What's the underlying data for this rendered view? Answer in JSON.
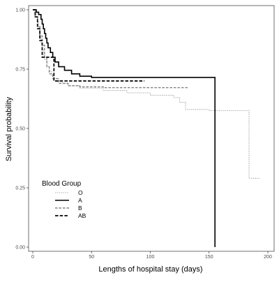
{
  "chart_data": {
    "type": "line",
    "step": true,
    "xlabel": "Lengths of hospital stay (days)",
    "ylabel": "Survival probability",
    "xlim": [
      0,
      200
    ],
    "ylim": [
      0,
      1
    ],
    "x_ticks": [
      "0",
      "50",
      "100",
      "150",
      "200"
    ],
    "y_ticks": [
      "0.00",
      "0.25",
      "0.50",
      "0.75",
      "1.00"
    ],
    "grid": false,
    "legend": {
      "title": "Blood Group",
      "position": "bottom-left"
    },
    "series": [
      {
        "name": "O",
        "color": "#b3b3b3",
        "dash": "dotted",
        "points": [
          [
            0,
            1.0
          ],
          [
            2,
            0.99
          ],
          [
            3,
            0.97
          ],
          [
            4,
            0.95
          ],
          [
            5,
            0.92
          ],
          [
            6,
            0.89
          ],
          [
            7,
            0.86
          ],
          [
            8,
            0.83
          ],
          [
            9,
            0.81
          ],
          [
            10,
            0.79
          ],
          [
            12,
            0.76
          ],
          [
            14,
            0.74
          ],
          [
            16,
            0.72
          ],
          [
            18,
            0.71
          ],
          [
            20,
            0.7
          ],
          [
            25,
            0.69
          ],
          [
            30,
            0.68
          ],
          [
            40,
            0.67
          ],
          [
            60,
            0.66
          ],
          [
            80,
            0.65
          ],
          [
            100,
            0.64
          ],
          [
            120,
            0.63
          ],
          [
            125,
            0.61
          ],
          [
            130,
            0.58
          ],
          [
            150,
            0.575
          ],
          [
            180,
            0.575
          ],
          [
            184,
            0.29
          ],
          [
            193,
            0.29
          ]
        ]
      },
      {
        "name": "A",
        "color": "#000000",
        "dash": "solid",
        "points": [
          [
            0,
            1.0
          ],
          [
            3,
            0.99
          ],
          [
            5,
            0.98
          ],
          [
            7,
            0.96
          ],
          [
            8,
            0.94
          ],
          [
            9,
            0.92
          ],
          [
            10,
            0.9
          ],
          [
            11,
            0.88
          ],
          [
            12,
            0.86
          ],
          [
            13,
            0.84
          ],
          [
            15,
            0.82
          ],
          [
            17,
            0.8
          ],
          [
            19,
            0.78
          ],
          [
            22,
            0.76
          ],
          [
            27,
            0.745
          ],
          [
            33,
            0.73
          ],
          [
            40,
            0.72
          ],
          [
            50,
            0.715
          ],
          [
            155,
            0.715
          ],
          [
            155,
            0.0
          ]
        ]
      },
      {
        "name": "B",
        "color": "#808080",
        "dash": "dashed",
        "points": [
          [
            0,
            1.0
          ],
          [
            2,
            0.97
          ],
          [
            4,
            0.93
          ],
          [
            6,
            0.89
          ],
          [
            8,
            0.85
          ],
          [
            10,
            0.8
          ],
          [
            12,
            0.76
          ],
          [
            14,
            0.73
          ],
          [
            17,
            0.71
          ],
          [
            22,
            0.69
          ],
          [
            30,
            0.68
          ],
          [
            40,
            0.675
          ],
          [
            60,
            0.672
          ],
          [
            133,
            0.672
          ]
        ]
      },
      {
        "name": "AB",
        "color": "#000000",
        "dash": "dashed-thick",
        "points": [
          [
            0,
            1.0
          ],
          [
            2,
            0.97
          ],
          [
            4,
            0.92
          ],
          [
            6,
            0.87
          ],
          [
            8,
            0.8
          ],
          [
            17,
            0.8
          ],
          [
            18,
            0.7
          ],
          [
            95,
            0.7
          ]
        ]
      }
    ]
  }
}
